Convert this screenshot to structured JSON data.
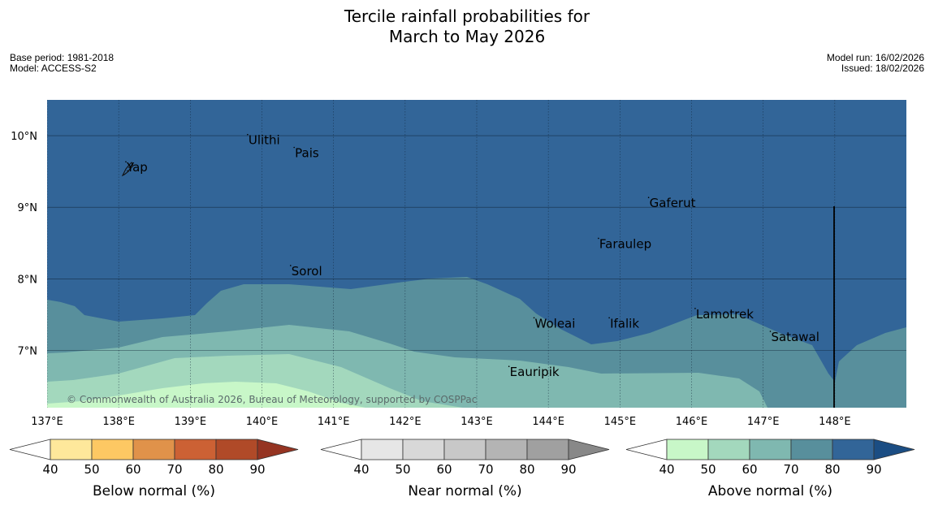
{
  "title": {
    "line1": "Tercile rainfall probabilities for",
    "line2": "March to May 2026"
  },
  "meta": {
    "base_period": "Base period: 1981-2018",
    "model": "Model: ACCESS-S2",
    "model_run": "Model run: 16/02/2026",
    "issued": "Issued: 18/02/2026"
  },
  "map": {
    "lon_range": [
      137,
      149
    ],
    "lat_range": [
      6.2,
      10.5
    ],
    "lat_ticks": [
      {
        "value": 10,
        "label": "10°N"
      },
      {
        "value": 9,
        "label": "9°N"
      },
      {
        "value": 8,
        "label": "8°N"
      },
      {
        "value": 7,
        "label": "7°N"
      }
    ],
    "lon_ticks": [
      {
        "value": 137,
        "label": "137°E"
      },
      {
        "value": 138,
        "label": "138°E"
      },
      {
        "value": 139,
        "label": "139°E"
      },
      {
        "value": 140,
        "label": "140°E"
      },
      {
        "value": 141,
        "label": "141°E"
      },
      {
        "value": 142,
        "label": "142°E"
      },
      {
        "value": 143,
        "label": "143°E"
      },
      {
        "value": 144,
        "label": "144°E"
      },
      {
        "value": 145,
        "label": "145°E"
      },
      {
        "value": 146,
        "label": "146°E"
      },
      {
        "value": 147,
        "label": "147°E"
      },
      {
        "value": 148,
        "label": "148°E"
      }
    ],
    "places": [
      {
        "name": "Yap",
        "lon": 138.1,
        "lat": 9.5
      },
      {
        "name": "Ulithi",
        "lon": 139.8,
        "lat": 9.88
      },
      {
        "name": "Pais",
        "lon": 140.45,
        "lat": 9.7
      },
      {
        "name": "Gaferut",
        "lon": 145.4,
        "lat": 9.0
      },
      {
        "name": "Faraulep",
        "lon": 144.7,
        "lat": 8.43
      },
      {
        "name": "Sorol",
        "lon": 140.4,
        "lat": 8.05
      },
      {
        "name": "Lamotrek",
        "lon": 146.05,
        "lat": 7.45
      },
      {
        "name": "Woleai",
        "lon": 143.8,
        "lat": 7.32
      },
      {
        "name": "Ifalik",
        "lon": 144.85,
        "lat": 7.32
      },
      {
        "name": "Satawal",
        "lon": 147.1,
        "lat": 7.13
      },
      {
        "name": "Eauripik",
        "lon": 143.45,
        "lat": 6.64
      }
    ],
    "category": "Above normal",
    "copyright": "© Commonwealth of Australia 2026, Bureau of Meteorology, supported by COSPPac"
  },
  "colorbars": [
    {
      "title": "Below normal (%)",
      "ticks": [
        "40",
        "50",
        "60",
        "70",
        "80",
        "90"
      ],
      "colors": [
        "#ffffff",
        "#fee89b",
        "#fdc863",
        "#e0924a",
        "#cc6134",
        "#b04a28",
        "#953422"
      ]
    },
    {
      "title": "Near normal (%)",
      "ticks": [
        "40",
        "50",
        "60",
        "70",
        "80",
        "90"
      ],
      "colors": [
        "#ffffff",
        "#e6e6e6",
        "#d8d8d8",
        "#c8c8c8",
        "#b4b4b4",
        "#a0a0a0",
        "#888888"
      ]
    },
    {
      "title": "Above normal (%)",
      "ticks": [
        "40",
        "50",
        "60",
        "70",
        "80",
        "90"
      ],
      "colors": [
        "#ffffff",
        "#c8f7c8",
        "#a3d8bd",
        "#7fb8b0",
        "#588f9c",
        "#326598",
        "#1b4d83"
      ]
    }
  ]
}
